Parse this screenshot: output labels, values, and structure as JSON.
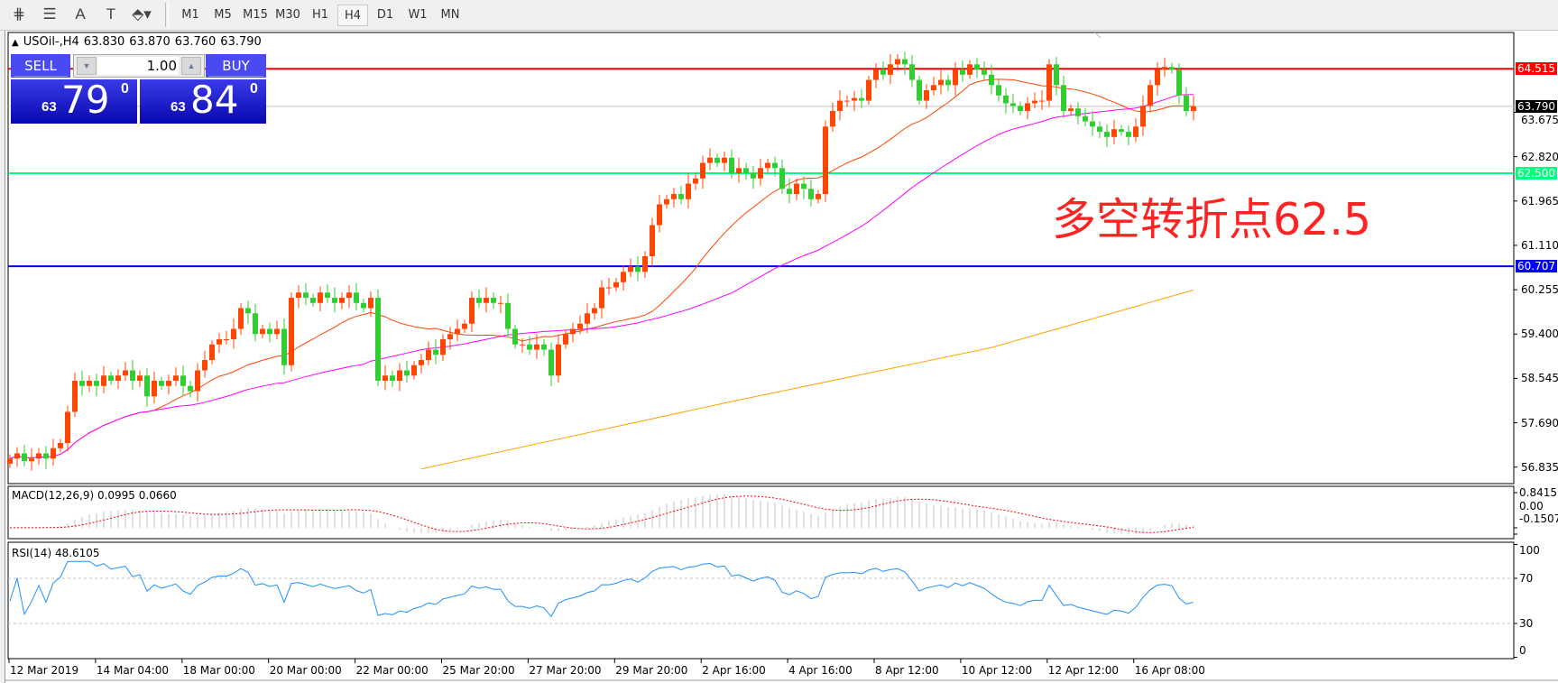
{
  "toolbar": {
    "icons": [
      {
        "name": "fibonacci-expansion-icon",
        "glyph": "⋕"
      },
      {
        "name": "fibonacci-fan-icon",
        "glyph": "☰"
      },
      {
        "name": "text-icon",
        "glyph": "A"
      },
      {
        "name": "text-label-icon",
        "glyph": "T"
      },
      {
        "name": "arrows-icon",
        "glyph": "⬘▾"
      }
    ],
    "timeframes": [
      "M1",
      "M5",
      "M15",
      "M30",
      "H1",
      "H4",
      "D1",
      "W1",
      "MN"
    ],
    "active_timeframe": "H4"
  },
  "header": {
    "arrow": "▲",
    "symbol": "USOil-,H4",
    "open": "63.830",
    "high": "63.870",
    "low": "63.760",
    "close": "63.790"
  },
  "trade_panel": {
    "sell_label": "SELL",
    "buy_label": "BUY",
    "lot": "1.00",
    "sell_price": {
      "prefix": "63",
      "big": "79",
      "sup": "0"
    },
    "buy_price": {
      "prefix": "63",
      "big": "84",
      "sup": "0"
    },
    "color": "#3a3ae8"
  },
  "annotation": "多空转折点62.5",
  "hlines": [
    {
      "price": 64.515,
      "label": "64.515",
      "color": "#ff0000"
    },
    {
      "price": 63.79,
      "label": "63.790",
      "color": "#000000",
      "line_color": "#c0c0c0"
    },
    {
      "price": 62.5,
      "label": "62.500",
      "color": "#00ff7f"
    },
    {
      "price": 60.707,
      "label": "60.707",
      "color": "#0000ff"
    }
  ],
  "price_ticks": [
    "63.675",
    "62.820",
    "61.965",
    "61.110",
    "60.255",
    "59.400",
    "58.545",
    "57.690",
    "56.835"
  ],
  "macd": {
    "label": "MACD(12,26,9) 0.0995 0.0660",
    "ticks": [
      "0.8415",
      "0.00",
      "-0.1507"
    ]
  },
  "rsi": {
    "label": "RSI(14) 48.6105",
    "ticks": [
      "100",
      "70",
      "30",
      "0"
    ],
    "levels": [
      70,
      30
    ]
  },
  "dates": [
    "12 Mar 2019",
    "14 Mar 04:00",
    "18 Mar 00:00",
    "20 Mar 00:00",
    "22 Mar 00:00",
    "25 Mar 20:00",
    "27 Mar 20:00",
    "29 Mar 20:00",
    "2 Apr 16:00",
    "4 Apr 16:00",
    "8 Apr 12:00",
    "10 Apr 12:00",
    "12 Apr 12:00",
    "16 Apr 08:00"
  ],
  "chart_data": {
    "type": "candlestick",
    "timeframe": "H4",
    "bull_color": "#ff4500",
    "bear_color": "#32cd32",
    "first_open": 56.9,
    "closes": [
      57.0,
      57.1,
      56.95,
      57.0,
      57.1,
      57.0,
      57.2,
      57.3,
      57.9,
      58.5,
      58.4,
      58.5,
      58.4,
      58.6,
      58.5,
      58.6,
      58.7,
      58.5,
      58.6,
      58.2,
      58.5,
      58.4,
      58.5,
      58.6,
      58.4,
      58.3,
      58.7,
      58.9,
      59.2,
      59.3,
      59.3,
      59.5,
      59.9,
      59.8,
      59.4,
      59.5,
      59.4,
      59.5,
      58.8,
      60.1,
      60.2,
      60.1,
      60.0,
      60.2,
      60.1,
      60.0,
      60.1,
      60.2,
      60.0,
      59.9,
      60.1,
      58.5,
      58.6,
      58.5,
      58.7,
      58.6,
      58.8,
      58.9,
      59.1,
      59.0,
      59.3,
      59.4,
      59.5,
      59.6,
      60.1,
      60.0,
      60.1,
      60.0,
      60.0,
      59.5,
      59.2,
      59.2,
      59.1,
      59.2,
      59.1,
      58.6,
      59.2,
      59.4,
      59.5,
      59.6,
      59.8,
      59.9,
      60.3,
      60.3,
      60.4,
      60.6,
      60.7,
      60.6,
      60.9,
      61.5,
      61.9,
      62.0,
      62.1,
      62.0,
      62.3,
      62.4,
      62.7,
      62.8,
      62.7,
      62.8,
      62.5,
      62.6,
      62.5,
      62.4,
      62.6,
      62.7,
      62.6,
      62.2,
      62.1,
      62.3,
      62.2,
      62.0,
      62.1,
      63.4,
      63.7,
      63.9,
      63.9,
      63.95,
      63.9,
      64.3,
      64.5,
      64.4,
      64.6,
      64.7,
      64.6,
      64.3,
      63.9,
      64.1,
      64.2,
      64.3,
      64.2,
      64.5,
      64.4,
      64.6,
      64.5,
      64.4,
      64.2,
      64.0,
      63.85,
      63.8,
      63.7,
      63.85,
      63.9,
      63.9,
      64.6,
      64.2,
      63.7,
      63.75,
      63.6,
      63.5,
      63.4,
      63.3,
      63.2,
      63.35,
      63.3,
      63.2,
      63.4,
      63.8,
      64.2,
      64.5,
      64.55,
      64.5,
      64.0,
      63.7,
      63.79
    ],
    "ma_fast": {
      "period": 21,
      "color": "#ff4500"
    },
    "ma_slow": {
      "period": 50,
      "color": "#ff00ff"
    },
    "ma_long": {
      "color": "#ffa500",
      "points": [
        [
          57,
          56.8
        ],
        [
          100,
          58.1
        ],
        [
          136,
          59.14
        ],
        [
          164,
          60.25
        ]
      ]
    },
    "ylim": [
      56.55,
      65.06
    ]
  }
}
